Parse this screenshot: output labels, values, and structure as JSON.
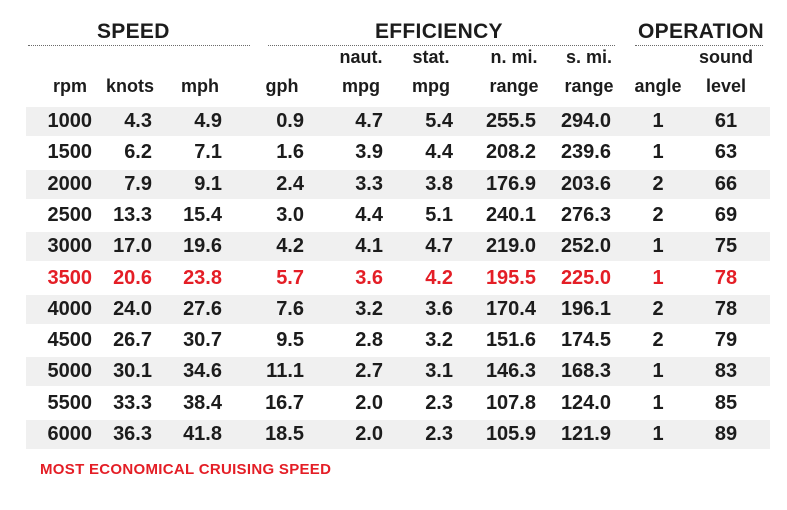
{
  "chart_data": {
    "type": "table",
    "groups": [
      "SPEED",
      "EFFICIENCY",
      "OPERATION"
    ],
    "columns": [
      {
        "line1": "",
        "line2": "rpm"
      },
      {
        "line1": "",
        "line2": "knots"
      },
      {
        "line1": "",
        "line2": "mph"
      },
      {
        "line1": "",
        "line2": "gph"
      },
      {
        "line1": "naut.",
        "line2": "mpg"
      },
      {
        "line1": "stat.",
        "line2": "mpg"
      },
      {
        "line1": "n. mi.",
        "line2": "range"
      },
      {
        "line1": "s. mi.",
        "line2": "range"
      },
      {
        "line1": "",
        "line2": "angle"
      },
      {
        "line1": "sound",
        "line2": "level"
      }
    ],
    "rows": [
      [
        "1000",
        "4.3",
        "4.9",
        "0.9",
        "4.7",
        "5.4",
        "255.5",
        "294.0",
        "1",
        "61"
      ],
      [
        "1500",
        "6.2",
        "7.1",
        "1.6",
        "3.9",
        "4.4",
        "208.2",
        "239.6",
        "1",
        "63"
      ],
      [
        "2000",
        "7.9",
        "9.1",
        "2.4",
        "3.3",
        "3.8",
        "176.9",
        "203.6",
        "2",
        "66"
      ],
      [
        "2500",
        "13.3",
        "15.4",
        "3.0",
        "4.4",
        "5.1",
        "240.1",
        "276.3",
        "2",
        "69"
      ],
      [
        "3000",
        "17.0",
        "19.6",
        "4.2",
        "4.1",
        "4.7",
        "219.0",
        "252.0",
        "1",
        "75"
      ],
      [
        "3500",
        "20.6",
        "23.8",
        "5.7",
        "3.6",
        "4.2",
        "195.5",
        "225.0",
        "1",
        "78"
      ],
      [
        "4000",
        "24.0",
        "27.6",
        "7.6",
        "3.2",
        "3.6",
        "170.4",
        "196.1",
        "2",
        "78"
      ],
      [
        "4500",
        "26.7",
        "30.7",
        "9.5",
        "2.8",
        "3.2",
        "151.6",
        "174.5",
        "2",
        "79"
      ],
      [
        "5000",
        "30.1",
        "34.6",
        "11.1",
        "2.7",
        "3.1",
        "146.3",
        "168.3",
        "1",
        "83"
      ],
      [
        "5500",
        "33.3",
        "38.4",
        "16.7",
        "2.0",
        "2.3",
        "107.8",
        "124.0",
        "1",
        "85"
      ],
      [
        "6000",
        "36.3",
        "41.8",
        "18.5",
        "2.0",
        "2.3",
        "105.9",
        "121.9",
        "1",
        "89"
      ]
    ],
    "highlight_row": 5,
    "highlight_color": "#e41e26",
    "footnote": "MOST ECONOMICAL CRUISING SPEED"
  }
}
